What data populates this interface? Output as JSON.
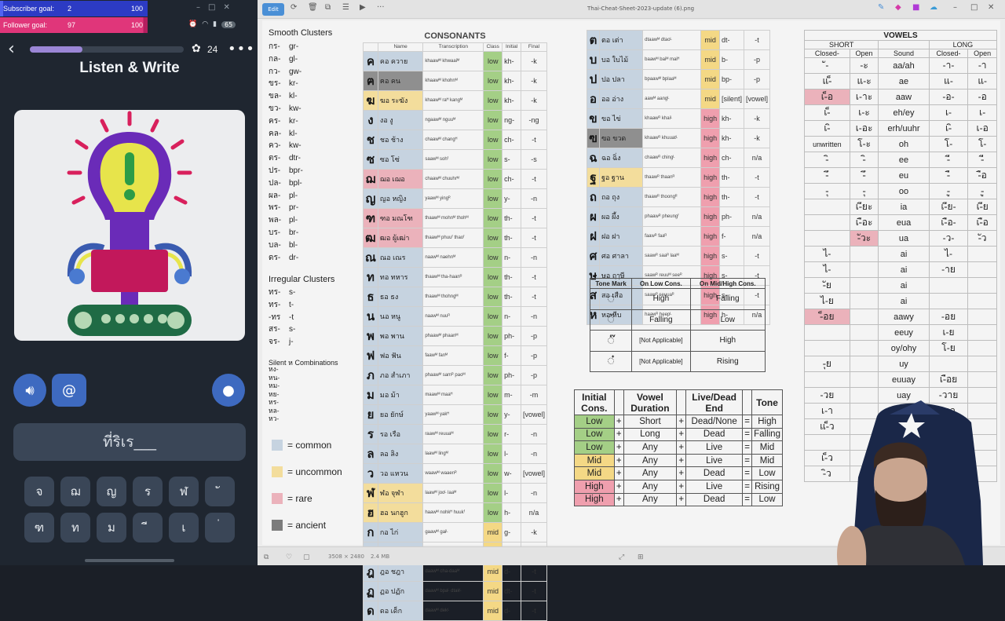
{
  "overlay": {
    "subscriber": {
      "label": "Subscriber goal:",
      "value": "2",
      "target": "100",
      "fraction": 0.02
    },
    "follower": {
      "label": "Follower goal:",
      "value": "97",
      "target": "100",
      "fraction": 0.97
    }
  },
  "phone": {
    "battery": "65",
    "progress_fraction": 0.34,
    "streak": "24",
    "title": "Listen & Write",
    "answer_text": "ที่ริเร___",
    "keys_row1": [
      "จ",
      "ฌ",
      "ญ",
      "ร",
      "ฬ",
      "ั"
    ],
    "keys_row2": [
      "ฑ",
      "ท",
      "ม",
      "ี",
      "เ",
      "่"
    ]
  },
  "viewer": {
    "edit_label": "Edit",
    "file_name": "Thai-Cheat-Sheet-2023-update (6).png",
    "image_dims": "3508 × 2480",
    "file_size": "2.4 MB"
  },
  "clusters": {
    "smooth_title": "Smooth Clusters",
    "smooth": [
      [
        "กร-",
        "gr-"
      ],
      [
        "กล-",
        "gl-"
      ],
      [
        "กว-",
        "gw-"
      ],
      [
        "ขร-",
        "kr-"
      ],
      [
        "ขล-",
        "kl-"
      ],
      [
        "ขว-",
        "kw-"
      ],
      [
        "คร-",
        "kr-"
      ],
      [
        "คล-",
        "kl-"
      ],
      [
        "คว-",
        "kw-"
      ],
      [
        "ตร-",
        "dtr-"
      ],
      [
        "ปร-",
        "bpr-"
      ],
      [
        "ปล-",
        "bpl-"
      ],
      [
        "ผล-",
        "pl-"
      ],
      [
        "พร-",
        "pr-"
      ],
      [
        "พล-",
        "pl-"
      ],
      [
        "บร-",
        "br-"
      ],
      [
        "บล-",
        "bl-"
      ],
      [
        "ดร-",
        "dr-"
      ]
    ],
    "irregular_title": "Irregular Clusters",
    "irregular": [
      [
        "ทร-",
        "s-"
      ],
      [
        "ทร-",
        "t-"
      ],
      [
        "-ทร",
        "-t"
      ],
      [
        "สร-",
        "s-"
      ],
      [
        "จร-",
        "j-"
      ]
    ],
    "silent_title": "Silent ห Combinations",
    "silent": [
      "หง-",
      "หน-",
      "หม-",
      "หย-",
      "หร-",
      "หล-",
      "หว-"
    ],
    "legend": [
      [
        "#c6d3e0",
        "= common"
      ],
      [
        "#f3dd9c",
        "= uncommon"
      ],
      [
        "#ebb2bb",
        "= rare"
      ],
      [
        "#7c7c7c",
        "= ancient"
      ]
    ]
  },
  "consonants": {
    "title": "CONSONANTS",
    "headers": [
      "Name",
      "Transcription",
      "Class",
      "Initial",
      "Final"
    ],
    "rows": [
      [
        "ค",
        "คอ ควาย",
        "khaawᴹ khwaaiᴹ",
        "low",
        "kh-",
        "-k",
        "common"
      ],
      [
        "ฅ",
        "ฅอ คน",
        "khaawᴹ khohnᴹ",
        "low",
        "kh-",
        "-k",
        "ancient"
      ],
      [
        "ฆ",
        "ฆอ ระฆัง",
        "khaawᴹ raᴴ kangᴹ",
        "low",
        "kh-",
        "-k",
        "uncommon"
      ],
      [
        "ง",
        "งอ งู",
        "ngaawᴹ nguuᴹ",
        "low",
        "ng-",
        "-ng",
        "common"
      ],
      [
        "ช",
        "ชอ ช้าง",
        "chaawᴹ changᴴ",
        "low",
        "ch-",
        "-t",
        "common"
      ],
      [
        "ซ",
        "ซอ โซ่",
        "saawᴹ sohᶠ",
        "low",
        "s-",
        "-s",
        "common"
      ],
      [
        "ฌ",
        "ฌอ เฌอ",
        "chaawᴹ chuuhrᴹ",
        "low",
        "ch-",
        "-t",
        "rare"
      ],
      [
        "ญ",
        "ญอ หญิง",
        "yaawᴹ yingᴿ",
        "low",
        "y-",
        "-n",
        "common"
      ],
      [
        "ฑ",
        "ฑอ มณโฑ",
        "thaawᴹ mohnᴹ thohᴹ",
        "low",
        "th-",
        "-t",
        "rare"
      ],
      [
        "ฒ",
        "ฒอ ผู้เฒ่า",
        "thaawᴹ phuuᶠ thaoᶠ",
        "low",
        "th-",
        "-t",
        "rare"
      ],
      [
        "ณ",
        "ณอ เณร",
        "naawᴹ naehnᴹ",
        "low",
        "n-",
        "-n",
        "common"
      ],
      [
        "ท",
        "ทอ ทหาร",
        "thaawᴹ tha-haanᴿ",
        "low",
        "th-",
        "-t",
        "common"
      ],
      [
        "ธ",
        "ธอ ธง",
        "thaawᴹ thohngᴹ",
        "low",
        "th-",
        "-t",
        "common"
      ],
      [
        "น",
        "นอ หนู",
        "naawᴹ nuuᴿ",
        "low",
        "n-",
        "-n",
        "common"
      ],
      [
        "พ",
        "พอ พาน",
        "phaawᴹ phaanᴹ",
        "low",
        "ph-",
        "-p",
        "common"
      ],
      [
        "ฟ",
        "ฟอ ฟัน",
        "faawᴹ fanᴹ",
        "low",
        "f-",
        "-p",
        "common"
      ],
      [
        "ภ",
        "ภอ สำเภา",
        "phaawᴹ samᴿ paoᴹ",
        "low",
        "ph-",
        "-p",
        "common"
      ],
      [
        "ม",
        "มอ ม้า",
        "maawᴹ maaᴴ",
        "low",
        "m-",
        "-m",
        "common"
      ],
      [
        "ย",
        "ยอ ยักษ์",
        "yaawᴹ yakᴴ",
        "low",
        "y-",
        "[vowel]",
        "common"
      ],
      [
        "ร",
        "รอ เรือ",
        "raawᴹ reuuaᴹ",
        "low",
        "r-",
        "-n",
        "common"
      ],
      [
        "ล",
        "ลอ ลิง",
        "laawᴹ lingᴹ",
        "low",
        "l-",
        "-n",
        "common"
      ],
      [
        "ว",
        "วอ แหวน",
        "waawᴹ waaenᴿ",
        "low",
        "w-",
        "[vowel]",
        "common"
      ],
      [
        "ฬ",
        "ฬอ จุฬา",
        "laawᴹ jooᴸ laaᴹ",
        "low",
        "l-",
        "-n",
        "uncommon"
      ],
      [
        "ฮ",
        "ฮอ นกฮูก",
        "haawᴹ nohkᴴ huukᶠ",
        "low",
        "h-",
        "n/a",
        "uncommon"
      ],
      [
        "ก",
        "กอ ไก่",
        "gaawᴹ gaiᴸ",
        "mid",
        "g-",
        "-k",
        "common"
      ],
      [
        "จ",
        "จอ จาน",
        "jaawᴹ jaanᴹ",
        "mid",
        "j-",
        "-t",
        "common"
      ],
      [
        "ฎ",
        "ฎอ ชฎา",
        "daawᴹ cha-daaᴹ",
        "mid",
        "d-",
        "-t",
        "common"
      ],
      [
        "ฏ",
        "ฏอ ปฏัก",
        "daawᴹ bpaᴸ dtakᴸ",
        "mid",
        "dt-",
        "-t",
        "common"
      ],
      [
        "ด",
        "ดอ เด็ก",
        "daawᴹ dekᴸ",
        "mid",
        "d-",
        "-t",
        "common"
      ]
    ]
  },
  "consonants2": {
    "rows": [
      [
        "ต",
        "ตอ เต่า",
        "dtaawᴹ dtaoᴸ",
        "mid",
        "dt-",
        "-t",
        "common"
      ],
      [
        "บ",
        "บอ ใบไม้",
        "baawᴹ baiᴹ maiᴴ",
        "mid",
        "b-",
        "-p",
        "common"
      ],
      [
        "ป",
        "ปอ ปลา",
        "bpaawᴹ bplaaᴹ",
        "mid",
        "bp-",
        "-p",
        "common"
      ],
      [
        "อ",
        "ออ อ่าง",
        "aawᴹ aangᴸ",
        "mid",
        "[silent]",
        "[vowel]",
        "common"
      ],
      [
        "ข",
        "ขอ ไข่",
        "khaawᴿ khaiᴸ",
        "high",
        "kh-",
        "-k",
        "common"
      ],
      [
        "ฃ",
        "ฃอ ขวด",
        "khaawᴿ khuuatᴸ",
        "high",
        "kh-",
        "-k",
        "ancient"
      ],
      [
        "ฉ",
        "ฉอ ฉิ่ง",
        "chaawᴿ chingᴸ",
        "high",
        "ch-",
        "n/a",
        "common"
      ],
      [
        "ฐ",
        "ฐอ ฐาน",
        "thaawᴿ thaanᴿ",
        "high",
        "th-",
        "-t",
        "uncommon"
      ],
      [
        "ถ",
        "ถอ ถุง",
        "thaawᴿ thoongᴿ",
        "high",
        "th-",
        "-t",
        "common"
      ],
      [
        "ผ",
        "ผอ ผึ้ง",
        "phaawᴿ pheungᶠ",
        "high",
        "ph-",
        "n/a",
        "common"
      ],
      [
        "ฝ",
        "ฝอ ฝา",
        "faawᴿ faaᴿ",
        "high",
        "f-",
        "n/a",
        "common"
      ],
      [
        "ศ",
        "ศอ ศาลา",
        "saawᴿ saaᴿ laaᴹ",
        "high",
        "s-",
        "-t",
        "common"
      ],
      [
        "ษ",
        "ษอ ฤๅษี",
        "saawᴿ reuuᴹ seeᴿ",
        "high",
        "s-",
        "-t",
        "common"
      ],
      [
        "ส",
        "สอ เสือ",
        "saawᴿ seuuaᴿ",
        "high",
        "s-",
        "-t",
        "common"
      ],
      [
        "ห",
        "หอ หีบ",
        "haawᴿ heepᴸ",
        "high",
        "h-",
        "n/a",
        "common"
      ]
    ]
  },
  "tone_marks": {
    "headers": [
      "Tone Mark",
      "On Low Cons.",
      "On Mid/High Cons."
    ],
    "rows": [
      [
        "่",
        "High",
        "Falling"
      ],
      [
        "้",
        "Falling",
        "Low"
      ],
      [
        "๊",
        "[Not Applicable]",
        "High"
      ],
      [
        "๋",
        "[Not Applicable]",
        "Rising"
      ]
    ]
  },
  "tone_rules": {
    "headers": [
      "Initial Cons.",
      "",
      "Vowel Duration",
      "",
      "Live/Dead End",
      "",
      "Tone"
    ],
    "rows": [
      [
        "Low",
        "+",
        "Short",
        "+",
        "Dead/None",
        "=",
        "High"
      ],
      [
        "Low",
        "+",
        "Long",
        "+",
        "Dead",
        "=",
        "Falling"
      ],
      [
        "Low",
        "+",
        "Any",
        "+",
        "Live",
        "=",
        "Mid"
      ],
      [
        "Mid",
        "+",
        "Any",
        "+",
        "Live",
        "=",
        "Mid"
      ],
      [
        "Mid",
        "+",
        "Any",
        "+",
        "Dead",
        "=",
        "Low"
      ],
      [
        "High",
        "+",
        "Any",
        "+",
        "Live",
        "=",
        "Rising"
      ],
      [
        "High",
        "+",
        "Any",
        "+",
        "Dead",
        "=",
        "Low"
      ]
    ]
  },
  "vowels": {
    "title": "VOWELS",
    "short_label": "SHORT",
    "long_label": "LONG",
    "subheaders": [
      "Closed-",
      "Open",
      "Sound",
      "Closed-",
      "Open"
    ],
    "rows": [
      [
        "ั-",
        "-ะ",
        "aa/ah",
        "-า-",
        "-า"
      ],
      [
        "แ-็",
        "แ-ะ",
        "ae",
        "แ-",
        "แ-"
      ],
      [
        "เ-็อ",
        "เ-าะ",
        "aaw",
        "-อ-",
        "-อ"
      ],
      [
        "เ-็",
        "เ-ะ",
        "eh/ey",
        "เ-",
        "เ-"
      ],
      [
        "เ-ิ",
        "เ-อะ",
        "erh/uuhr",
        "เ-ิ",
        "เ-อ"
      ],
      [
        "unwritten",
        "โ-ะ",
        "oh",
        "โ-",
        "โ-"
      ],
      [
        "-ิ",
        "-ิ",
        "ee",
        "-ี",
        "-ี"
      ],
      [
        "-ึ",
        "-ึ",
        "eu",
        "-ื",
        "-ือ"
      ],
      [
        "-ุ",
        "-ุ",
        "oo",
        "-ู",
        "-ู"
      ],
      [
        "",
        "เ-ียะ",
        "ia",
        "เ-ีย-",
        "เ-ีย"
      ],
      [
        "",
        "เ-ือะ",
        "eua",
        "เ-ือ-",
        "เ-ือ"
      ],
      [
        "",
        "-ัวะ",
        "ua",
        "-ว-",
        "-ัว"
      ],
      [
        "ไ-",
        "",
        "ai",
        "ไ-",
        ""
      ],
      [
        "ไ-",
        "",
        "ai",
        "-าย",
        ""
      ],
      [
        "-ัย",
        "",
        "ai",
        "",
        ""
      ],
      [
        "ไ-ย",
        "",
        "ai",
        "",
        ""
      ],
      [
        "-็อย",
        "",
        "aawy",
        "-อย",
        ""
      ],
      [
        "",
        "",
        "eeuy",
        "เ-ย",
        ""
      ],
      [
        "",
        "",
        "oy/ohy",
        "โ-ย",
        ""
      ],
      [
        "-ุย",
        "",
        "uy",
        "",
        ""
      ],
      [
        "",
        "",
        "euuay",
        "เ-ือย",
        ""
      ],
      [
        "-วย",
        "",
        "uay",
        "-วาย",
        ""
      ],
      [
        "เ-า",
        "",
        "ao",
        "-าว",
        ""
      ],
      [
        "แ-็ว",
        "",
        "aeo",
        "แ-ว",
        ""
      ],
      [
        "",
        "",
        "",
        "เ-าว",
        ""
      ],
      [
        "เ-็ว",
        "",
        "",
        "",
        ""
      ],
      [
        "-ิว",
        "",
        "",
        "",
        ""
      ]
    ]
  }
}
